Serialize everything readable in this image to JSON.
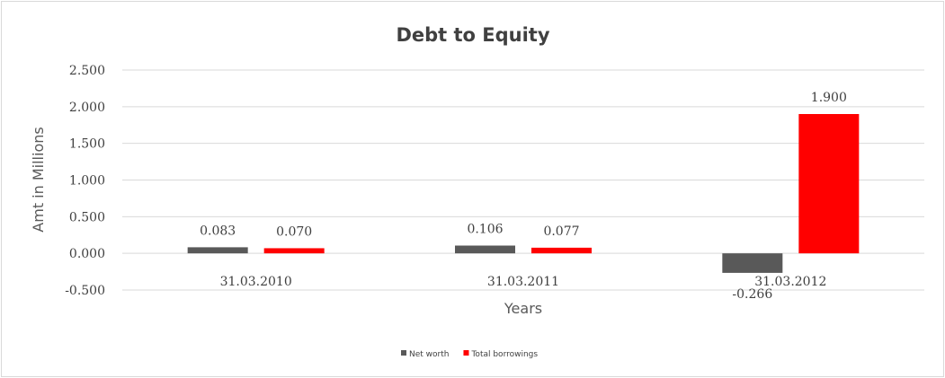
{
  "chart_data": {
    "type": "bar",
    "title": "Debt to Equity",
    "xlabel": "Years",
    "ylabel": "Amt in Millions",
    "categories": [
      "31.03.2010",
      "31.03.2011",
      "31.03.2012"
    ],
    "series": [
      {
        "name": "Net worth",
        "values": [
          0.083,
          0.106,
          -0.266
        ],
        "labels": [
          "0.083",
          "0.106",
          "-0.266"
        ],
        "color": "#595959"
      },
      {
        "name": "Total borrowings",
        "values": [
          0.07,
          0.077,
          1.9
        ],
        "labels": [
          "0.070",
          "0.077",
          "1.900"
        ],
        "color": "#ff0000"
      }
    ],
    "ylim": [
      -0.5,
      2.5
    ],
    "yticks": [
      "-0.500",
      "0.000",
      "0.500",
      "1.000",
      "1.500",
      "2.000",
      "2.500"
    ],
    "ytick_values": [
      -0.5,
      0,
      0.5,
      1.0,
      1.5,
      2.0,
      2.5
    ],
    "grid": true,
    "legend_position": "bottom"
  }
}
